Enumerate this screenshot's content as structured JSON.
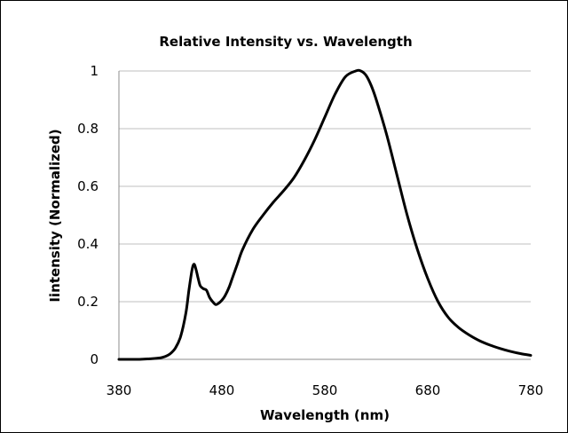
{
  "chart_data": {
    "type": "line",
    "title": "Relative Intensity vs. Wavelength",
    "xlabel": "Wavelength (nm)",
    "ylabel": "Iintensity (Normalized)",
    "xlim": [
      380,
      780
    ],
    "ylim": [
      0,
      1
    ],
    "x_ticks": [
      "380",
      "480",
      "580",
      "680",
      "780"
    ],
    "y_ticks": [
      "0",
      "0.2",
      "0.4",
      "0.6",
      "0.8",
      "1"
    ],
    "grid": "horizontal",
    "legend": "none",
    "line_color": "#000000",
    "series": [
      {
        "x": [
          380,
          400,
          410,
          420,
          425,
          430,
          435,
          440,
          445,
          448,
          451,
          453,
          455,
          457,
          459,
          462,
          465,
          468,
          471,
          474,
          477,
          480,
          483,
          487,
          490,
          495,
          500,
          510,
          520,
          530,
          540,
          550,
          560,
          570,
          580,
          590,
          600,
          610,
          615,
          620,
          625,
          630,
          640,
          650,
          660,
          670,
          680,
          690,
          700,
          710,
          720,
          730,
          740,
          750,
          760,
          770,
          780
        ],
        "y": [
          0.0,
          0.0,
          0.002,
          0.005,
          0.01,
          0.02,
          0.04,
          0.08,
          0.16,
          0.24,
          0.31,
          0.33,
          0.31,
          0.28,
          0.255,
          0.245,
          0.24,
          0.215,
          0.2,
          0.19,
          0.195,
          0.205,
          0.22,
          0.25,
          0.28,
          0.33,
          0.38,
          0.45,
          0.5,
          0.545,
          0.585,
          0.63,
          0.69,
          0.76,
          0.84,
          0.92,
          0.98,
          1.0,
          1.0,
          0.985,
          0.95,
          0.9,
          0.78,
          0.64,
          0.5,
          0.38,
          0.28,
          0.2,
          0.145,
          0.11,
          0.085,
          0.065,
          0.05,
          0.038,
          0.028,
          0.02,
          0.014
        ]
      }
    ]
  }
}
